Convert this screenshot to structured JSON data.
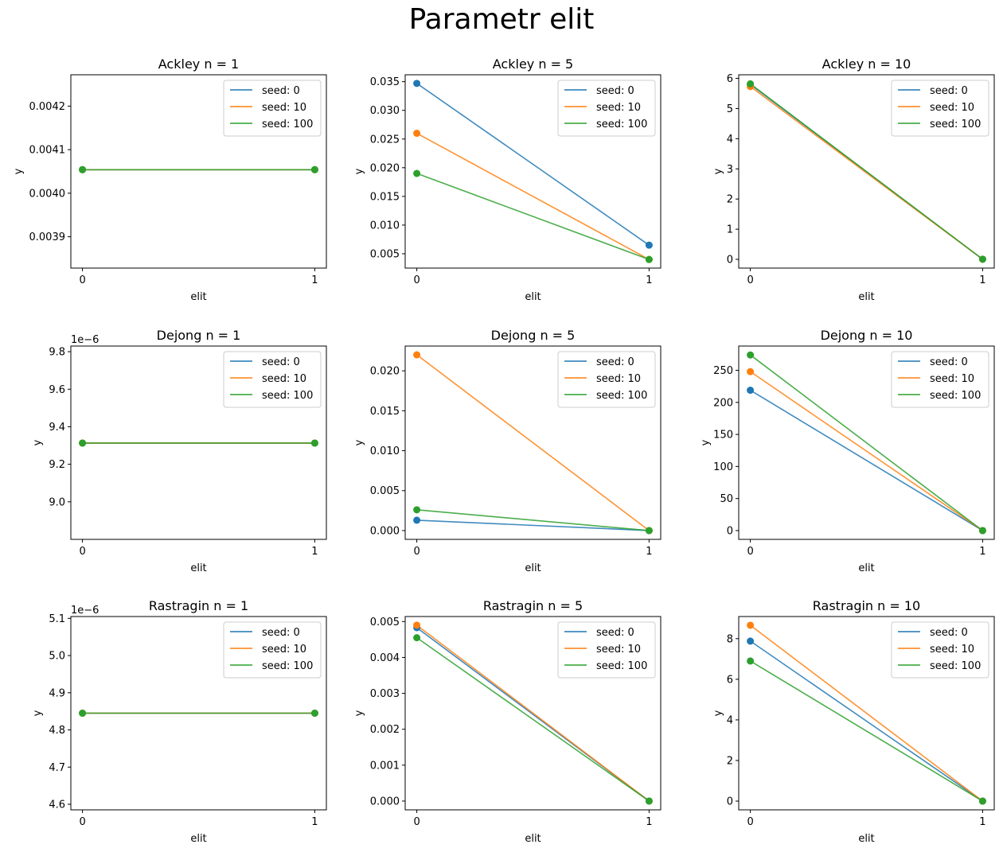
{
  "figure": {
    "title": "Parametr elit",
    "colors": [
      "#1f77b4",
      "#ff7f0e",
      "#2ca02c"
    ]
  },
  "chart_data": [
    {
      "type": "line",
      "title": "Ackley n = 1",
      "xlabel": "elit",
      "ylabel": "y",
      "x": [
        0,
        1
      ],
      "xticks": [
        "0",
        "1"
      ],
      "ylim": [
        0.003828,
        0.004272
      ],
      "yticks": [
        "0.0039",
        "0.0040",
        "0.0041",
        "0.0042"
      ],
      "ytick_values": [
        0.0039,
        0.004,
        0.0041,
        0.0042
      ],
      "offset_label": "",
      "legend_position": "upper right",
      "series": [
        {
          "name": "seed: 0",
          "values": [
            0.004054,
            0.004054
          ]
        },
        {
          "name": "seed: 10",
          "values": [
            0.004054,
            0.004054
          ]
        },
        {
          "name": "seed: 100",
          "values": [
            0.004054,
            0.004054
          ]
        }
      ]
    },
    {
      "type": "line",
      "title": "Ackley n = 5",
      "xlabel": "elit",
      "ylabel": "y",
      "x": [
        0,
        1
      ],
      "xticks": [
        "0",
        "1"
      ],
      "ylim": [
        0.0025,
        0.0362
      ],
      "yticks": [
        "0.005",
        "0.010",
        "0.015",
        "0.020",
        "0.025",
        "0.030",
        "0.035"
      ],
      "ytick_values": [
        0.005,
        0.01,
        0.015,
        0.02,
        0.025,
        0.03,
        0.035
      ],
      "offset_label": "",
      "legend_position": "upper right",
      "series": [
        {
          "name": "seed: 0",
          "values": [
            0.0347,
            0.0065
          ]
        },
        {
          "name": "seed: 10",
          "values": [
            0.026,
            0.004
          ]
        },
        {
          "name": "seed: 100",
          "values": [
            0.019,
            0.004
          ]
        }
      ]
    },
    {
      "type": "line",
      "title": "Ackley n = 10",
      "xlabel": "elit",
      "ylabel": "y",
      "x": [
        0,
        1
      ],
      "xticks": [
        "0",
        "1"
      ],
      "ylim": [
        -0.29,
        6.12
      ],
      "yticks": [
        "0",
        "1",
        "2",
        "3",
        "4",
        "5",
        "6"
      ],
      "ytick_values": [
        0,
        1,
        2,
        3,
        4,
        5,
        6
      ],
      "offset_label": "",
      "legend_position": "upper right",
      "series": [
        {
          "name": "seed: 0",
          "values": [
            5.8,
            0.004
          ]
        },
        {
          "name": "seed: 10",
          "values": [
            5.73,
            0.004
          ]
        },
        {
          "name": "seed: 100",
          "values": [
            5.82,
            0.004
          ]
        }
      ]
    },
    {
      "type": "line",
      "title": "Dejong n = 1",
      "xlabel": "elit",
      "ylabel": "y",
      "x": [
        0,
        1
      ],
      "xticks": [
        "0",
        "1"
      ],
      "ylim": [
        8.8,
        9.83
      ],
      "yticks": [
        "9.0",
        "9.2",
        "9.4",
        "9.6",
        "9.8"
      ],
      "ytick_values": [
        9.0,
        9.2,
        9.4,
        9.6,
        9.8
      ],
      "offset_label": "1e−6",
      "legend_position": "upper right",
      "series": [
        {
          "name": "seed: 0",
          "values": [
            9.313,
            9.313
          ]
        },
        {
          "name": "seed: 10",
          "values": [
            9.313,
            9.313
          ]
        },
        {
          "name": "seed: 100",
          "values": [
            9.313,
            9.313
          ]
        }
      ]
    },
    {
      "type": "line",
      "title": "Dejong n = 5",
      "xlabel": "elit",
      "ylabel": "y",
      "x": [
        0,
        1
      ],
      "xticks": [
        "0",
        "1"
      ],
      "ylim": [
        -0.0011,
        0.0231
      ],
      "yticks": [
        "0.000",
        "0.005",
        "0.010",
        "0.015",
        "0.020"
      ],
      "ytick_values": [
        0.0,
        0.005,
        0.01,
        0.015,
        0.02
      ],
      "offset_label": "",
      "legend_position": "upper right",
      "series": [
        {
          "name": "seed: 0",
          "values": [
            0.0013,
            0.0
          ]
        },
        {
          "name": "seed: 10",
          "values": [
            0.022,
            0.0
          ]
        },
        {
          "name": "seed: 100",
          "values": [
            0.0026,
            0.0
          ]
        }
      ]
    },
    {
      "type": "line",
      "title": "Dejong n = 10",
      "xlabel": "elit",
      "ylabel": "y",
      "x": [
        0,
        1
      ],
      "xticks": [
        "0",
        "1"
      ],
      "ylim": [
        -13.7,
        287.9
      ],
      "yticks": [
        "0",
        "50",
        "100",
        "150",
        "200",
        "250"
      ],
      "ytick_values": [
        0,
        50,
        100,
        150,
        200,
        250
      ],
      "offset_label": "",
      "legend_position": "upper right",
      "series": [
        {
          "name": "seed: 0",
          "values": [
            219,
            0
          ]
        },
        {
          "name": "seed: 10",
          "values": [
            248,
            0
          ]
        },
        {
          "name": "seed: 100",
          "values": [
            274,
            0
          ]
        }
      ]
    },
    {
      "type": "line",
      "title": "Rastragin n = 1",
      "xlabel": "elit",
      "ylabel": "y",
      "x": [
        0,
        1
      ],
      "xticks": [
        "0",
        "1"
      ],
      "ylim": [
        4.585,
        5.105
      ],
      "yticks": [
        "4.6",
        "4.7",
        "4.8",
        "4.9",
        "5.0",
        "5.1"
      ],
      "ytick_values": [
        4.6,
        4.7,
        4.8,
        4.9,
        5.0,
        5.1
      ],
      "offset_label": "1e−6",
      "legend_position": "upper right",
      "series": [
        {
          "name": "seed: 0",
          "values": [
            4.845,
            4.845
          ]
        },
        {
          "name": "seed: 10",
          "values": [
            4.845,
            4.845
          ]
        },
        {
          "name": "seed: 100",
          "values": [
            4.845,
            4.845
          ]
        }
      ]
    },
    {
      "type": "line",
      "title": "Rastragin n = 5",
      "xlabel": "elit",
      "ylabel": "y",
      "x": [
        0,
        1
      ],
      "xticks": [
        "0",
        "1"
      ],
      "ylim": [
        -0.000245,
        0.00514
      ],
      "yticks": [
        "0.000",
        "0.001",
        "0.002",
        "0.003",
        "0.004",
        "0.005"
      ],
      "ytick_values": [
        0.0,
        0.001,
        0.002,
        0.003,
        0.004,
        0.005
      ],
      "offset_label": "",
      "legend_position": "upper right",
      "series": [
        {
          "name": "seed: 0",
          "values": [
            0.00483,
            0.0
          ]
        },
        {
          "name": "seed: 10",
          "values": [
            0.0049,
            0.0
          ]
        },
        {
          "name": "seed: 100",
          "values": [
            0.00455,
            0.0
          ]
        }
      ]
    },
    {
      "type": "line",
      "title": "Rastragin n = 10",
      "xlabel": "elit",
      "ylabel": "y",
      "x": [
        0,
        1
      ],
      "xticks": [
        "0",
        "1"
      ],
      "ylim": [
        -0.43,
        9.09
      ],
      "yticks": [
        "0",
        "2",
        "4",
        "6",
        "8"
      ],
      "ytick_values": [
        0,
        2,
        4,
        6,
        8
      ],
      "offset_label": "",
      "legend_position": "upper right",
      "series": [
        {
          "name": "seed: 0",
          "values": [
            7.88,
            0.0
          ]
        },
        {
          "name": "seed: 10",
          "values": [
            8.66,
            0.0
          ]
        },
        {
          "name": "seed: 100",
          "values": [
            6.9,
            0.0
          ]
        }
      ]
    }
  ]
}
